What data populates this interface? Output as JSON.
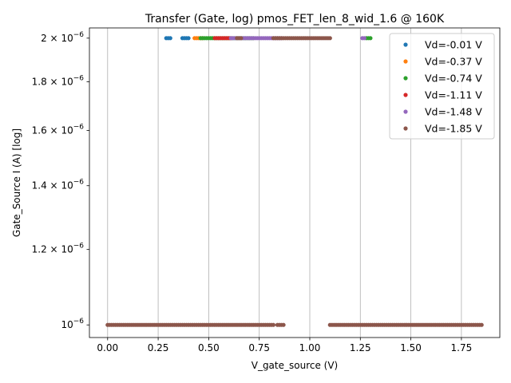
{
  "chart_data": {
    "type": "scatter",
    "title": "Transfer (Gate, log) pmos_FET_len_8_wid_1.6 @ 160K",
    "xlabel": "V_gate_source (V)",
    "ylabel": "Gate_Source I (A) [log]",
    "x_scale": "linear",
    "y_scale": "log",
    "xlim": [
      -0.09,
      1.94
    ],
    "ylim": [
      9.7e-07,
      2.05e-06
    ],
    "x_ticks": [
      {
        "value": 0.0,
        "label": "0.00"
      },
      {
        "value": 0.25,
        "label": "0.25"
      },
      {
        "value": 0.5,
        "label": "0.50"
      },
      {
        "value": 0.75,
        "label": "0.75"
      },
      {
        "value": 1.0,
        "label": "1.00"
      },
      {
        "value": 1.25,
        "label": "1.25"
      },
      {
        "value": 1.5,
        "label": "1.50"
      },
      {
        "value": 1.75,
        "label": "1.75"
      }
    ],
    "y_ticks": [
      {
        "value": 1e-06,
        "mantissa": "",
        "exp": "−6",
        "base": "10"
      },
      {
        "value": 1.2e-06,
        "mantissa": "1.2 × ",
        "exp": "−6",
        "base": "10"
      },
      {
        "value": 1.4e-06,
        "mantissa": "1.4 × ",
        "exp": "−6",
        "base": "10"
      },
      {
        "value": 1.6e-06,
        "mantissa": "1.6 × ",
        "exp": "−6",
        "base": "10"
      },
      {
        "value": 1.8e-06,
        "mantissa": "1.8 × ",
        "exp": "−6",
        "base": "10"
      },
      {
        "value": 2e-06,
        "mantissa": "2 × ",
        "exp": "−6",
        "base": "10"
      }
    ],
    "grid": "x-only",
    "legend_position": "top-right",
    "series": [
      {
        "name": "Vd=-0.01 V",
        "color": "#1f77b4",
        "segments": [
          {
            "y": 2e-06,
            "x_from": 0.29,
            "x_to": 0.31
          },
          {
            "y": 2e-06,
            "x_from": 0.37,
            "x_to": 0.4
          }
        ]
      },
      {
        "name": "Vd=-0.37 V",
        "color": "#ff7f0e",
        "segments": [
          {
            "y": 2e-06,
            "x_from": 0.43,
            "x_to": 0.47
          }
        ]
      },
      {
        "name": "Vd=-0.74 V",
        "color": "#2ca02c",
        "segments": [
          {
            "y": 2e-06,
            "x_from": 0.46,
            "x_to": 0.72
          },
          {
            "y": 2e-06,
            "x_from": 1.28,
            "x_to": 1.3
          }
        ]
      },
      {
        "name": "Vd=-1.11 V",
        "color": "#d62728",
        "segments": [
          {
            "y": 2e-06,
            "x_from": 0.53,
            "x_to": 0.61
          }
        ]
      },
      {
        "name": "Vd=-1.48 V",
        "color": "#9467bd",
        "segments": [
          {
            "y": 2e-06,
            "x_from": 0.61,
            "x_to": 0.86
          },
          {
            "y": 2e-06,
            "x_from": 1.26,
            "x_to": 1.27
          }
        ]
      },
      {
        "name": "Vd=-1.85 V",
        "color": "#8c564b",
        "segments": [
          {
            "y": 2e-06,
            "x_from": 0.64,
            "x_to": 0.66
          },
          {
            "y": 2e-06,
            "x_from": 0.82,
            "x_to": 1.1
          },
          {
            "y": 1e-06,
            "x_from": 0.0,
            "x_to": 0.82
          },
          {
            "y": 1e-06,
            "x_from": 0.84,
            "x_to": 0.87
          },
          {
            "y": 1e-06,
            "x_from": 1.1,
            "x_to": 1.85
          }
        ]
      }
    ],
    "step": 0.01
  }
}
